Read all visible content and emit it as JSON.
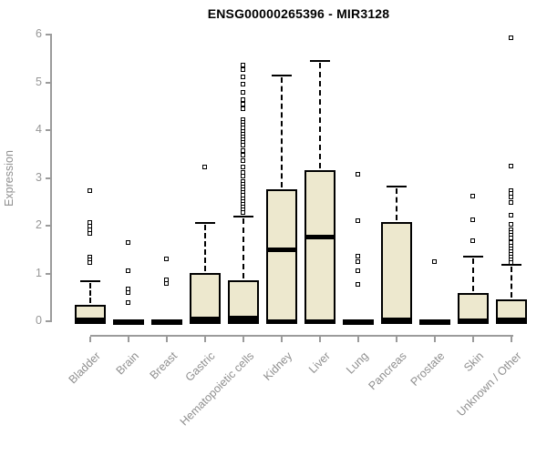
{
  "chart_data": {
    "type": "boxplot",
    "title": "ENSG00000265396 - MIR3128",
    "ylabel": "Expression",
    "xlabel": "",
    "ylim": [
      0,
      6
    ],
    "yticks": [
      0,
      1,
      2,
      3,
      4,
      5,
      6
    ],
    "grid": false,
    "legend": false,
    "categories": [
      "Bladder",
      "Brain",
      "Breast",
      "Gastric",
      "Hematopoietic cells",
      "Kidney",
      "Liver",
      "Lung",
      "Pancreas",
      "Prostate",
      "Skin",
      "Unknown / Other"
    ],
    "series": [
      {
        "name": "Bladder",
        "q1": 0,
        "median": 0.03,
        "q3": 0.35,
        "whisker_low": 0,
        "whisker_high": 0.84,
        "outliers": [
          2.72,
          2.06,
          1.98,
          1.9,
          1.82,
          1.34,
          1.28,
          1.21
        ]
      },
      {
        "name": "Brain",
        "q1": 0,
        "median": 0,
        "q3": 0,
        "whisker_low": 0,
        "whisker_high": 0,
        "outliers": [
          1.64,
          1.05,
          0.67,
          0.6,
          0.38
        ]
      },
      {
        "name": "Breast",
        "q1": 0,
        "median": 0,
        "q3": 0,
        "whisker_low": 0,
        "whisker_high": 0,
        "outliers": [
          1.3,
          0.86,
          0.79
        ]
      },
      {
        "name": "Gastric",
        "q1": 0,
        "median": 0.05,
        "q3": 1.01,
        "whisker_low": 0,
        "whisker_high": 2.06,
        "outliers": [
          3.22
        ]
      },
      {
        "name": "Hematopoietic cells",
        "q1": 0,
        "median": 0.07,
        "q3": 0.86,
        "whisker_low": 0,
        "whisker_high": 2.2,
        "outliers": [
          5.35,
          5.25,
          5.1,
          4.95,
          4.79,
          4.63,
          4.53,
          4.44,
          4.21,
          4.15,
          4.09,
          4.03,
          3.97,
          3.91,
          3.85,
          3.79,
          3.73,
          3.67,
          3.56,
          3.46,
          3.35,
          3.22,
          3.1,
          3.02,
          2.92,
          2.86,
          2.8,
          2.74,
          2.68,
          2.62,
          2.56,
          2.5,
          2.44,
          2.38,
          2.32,
          2.26
        ]
      },
      {
        "name": "Kidney",
        "q1": 0,
        "median": 1.51,
        "q3": 2.76,
        "whisker_low": 0,
        "whisker_high": 5.15,
        "outliers": []
      },
      {
        "name": "Liver",
        "q1": 0,
        "median": 1.78,
        "q3": 3.17,
        "whisker_low": 0,
        "whisker_high": 5.44,
        "outliers": []
      },
      {
        "name": "Lung",
        "q1": 0,
        "median": 0,
        "q3": 0,
        "whisker_low": 0,
        "whisker_high": 0,
        "outliers": [
          3.07,
          2.1,
          1.35,
          1.23,
          1.05,
          0.76
        ]
      },
      {
        "name": "Pancreas",
        "q1": 0,
        "median": 0.04,
        "q3": 2.08,
        "whisker_low": 0,
        "whisker_high": 2.82,
        "outliers": []
      },
      {
        "name": "Prostate",
        "q1": 0,
        "median": 0,
        "q3": 0,
        "whisker_low": 0,
        "whisker_high": 0,
        "outliers": [
          1.24
        ]
      },
      {
        "name": "Skin",
        "q1": 0,
        "median": 0.02,
        "q3": 0.6,
        "whisker_low": 0,
        "whisker_high": 1.35,
        "outliers": [
          2.61,
          2.11,
          1.68
        ]
      },
      {
        "name": "Unknown / Other",
        "q1": 0,
        "median": 0.03,
        "q3": 0.46,
        "whisker_low": 0,
        "whisker_high": 1.18,
        "outliers": [
          5.92,
          3.24,
          2.72,
          2.66,
          2.6,
          2.48,
          2.21,
          2.02,
          1.91,
          1.85,
          1.79,
          1.73,
          1.63,
          1.56,
          1.5,
          1.45,
          1.4,
          1.34,
          1.28,
          1.22
        ]
      }
    ],
    "colors": {
      "box_fill": "#EDE8CE",
      "box_border": "#000000",
      "median": "#000000",
      "axis": "#9B9B9B",
      "tick_label": "#969696",
      "title": "#000000",
      "background": "#FFFFFF"
    }
  }
}
